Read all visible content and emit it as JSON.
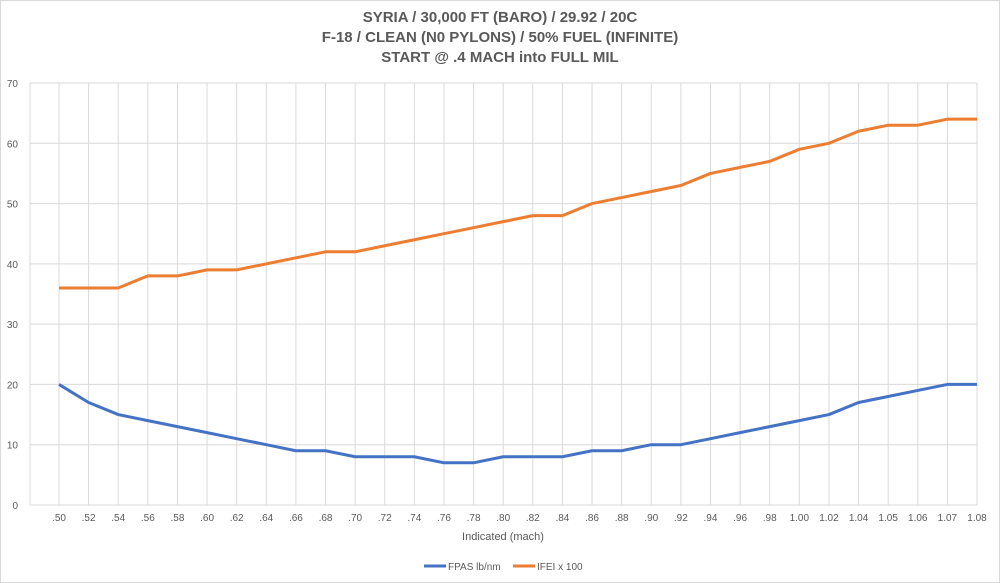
{
  "chart_data": {
    "type": "line",
    "title_lines": [
      "SYRIA / 30,000 FT (BARO) / 29.92 / 20C",
      "F-18 / CLEAN (N0 PYLONS) / 50% FUEL (INFINITE)",
      "START @ .4 MACH into FULL MIL"
    ],
    "xlabel": "Indicated (mach)",
    "ylabel": "",
    "ylim": [
      0,
      70
    ],
    "yticks": [
      "0",
      "10",
      "20",
      "30",
      "40",
      "50",
      "60",
      "70"
    ],
    "categories": [
      ".50",
      ".52",
      ".54",
      ".56",
      ".58",
      ".60",
      ".62",
      ".64",
      ".66",
      ".68",
      ".70",
      ".72",
      ".74",
      ".76",
      ".78",
      ".80",
      ".82",
      ".84",
      ".86",
      ".88",
      ".90",
      ".92",
      ".94",
      ".96",
      ".98",
      "1.00",
      "1.02",
      "1.04",
      "1.05",
      "1.06",
      "1.07",
      "1.08"
    ],
    "series": [
      {
        "name": "FPAS lb/nm",
        "color": "#4472c4",
        "values": [
          20,
          17,
          15,
          14,
          13,
          12,
          11,
          10,
          9,
          9,
          8,
          8,
          8,
          7,
          7,
          8,
          8,
          8,
          9,
          9,
          10,
          10,
          11,
          12,
          13,
          14,
          15,
          17,
          18,
          19,
          20,
          20
        ]
      },
      {
        "name": "IFEI x 100",
        "color": "#ed7d31",
        "values": [
          36,
          36,
          36,
          38,
          38,
          39,
          39,
          40,
          41,
          42,
          42,
          43,
          44,
          45,
          46,
          47,
          48,
          48,
          50,
          51,
          52,
          53,
          55,
          56,
          57,
          59,
          60,
          62,
          63,
          63,
          64,
          64
        ]
      }
    ],
    "grid": true,
    "legend_position": "bottom"
  }
}
